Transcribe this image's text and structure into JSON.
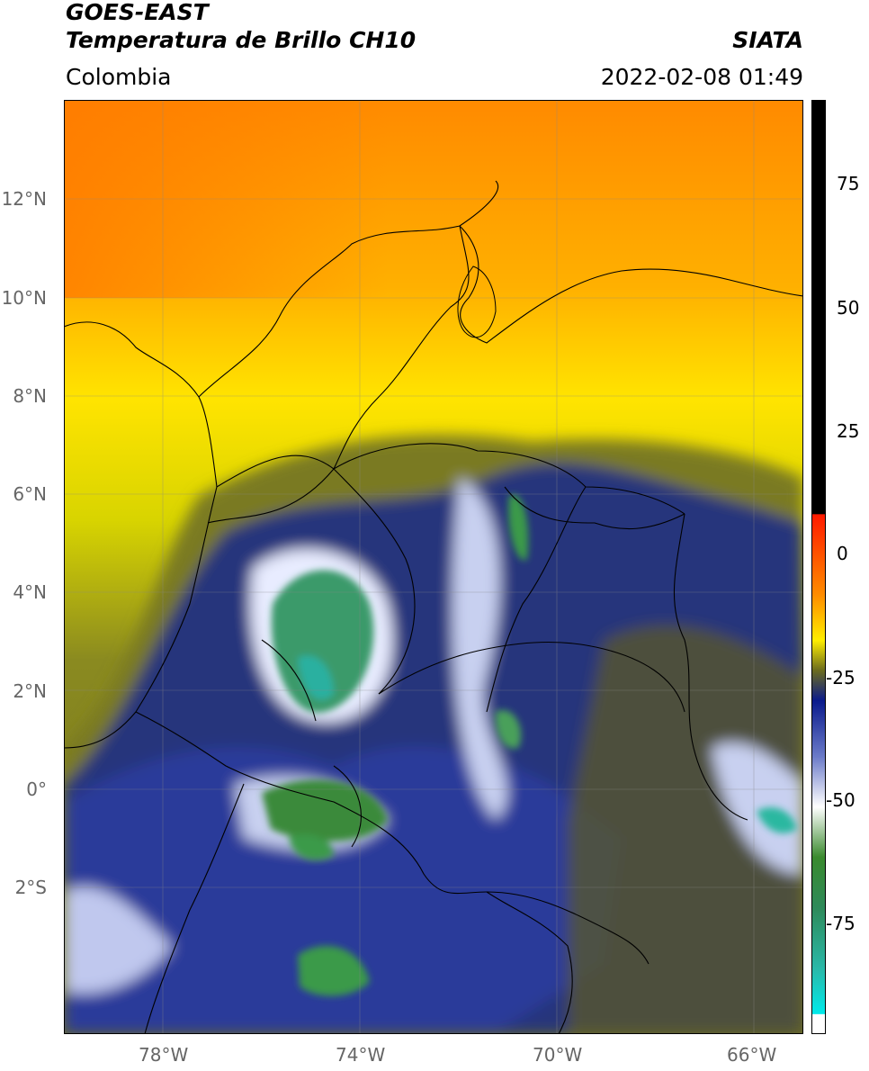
{
  "header": {
    "satellite": "GOES-EAST",
    "product": "Temperatura de Brillo CH10",
    "region": "Colombia",
    "agency": "SIATA",
    "datetime": "2022-02-08 01:49"
  },
  "map": {
    "latitude_ticks": [
      "12°N",
      "10°N",
      "8°N",
      "6°N",
      "4°N",
      "2°N",
      "0°",
      "2°S"
    ],
    "longitude_ticks": [
      "78°W",
      "74°W",
      "70°W",
      "66°W"
    ],
    "extent": {
      "lon_min": -80,
      "lon_max": -65,
      "lat_min": -5,
      "lat_max": 14
    }
  },
  "colorbar": {
    "ticks": [
      "75",
      "50",
      "25",
      "0",
      "-25",
      "-50",
      "-75"
    ],
    "range": [
      -95,
      90
    ],
    "stops": [
      {
        "value": 90,
        "color": "#000000"
      },
      {
        "value": 8,
        "color": "#000000"
      },
      {
        "value": 7.9,
        "color": "#ff1a00"
      },
      {
        "value": -8,
        "color": "#ff8c00"
      },
      {
        "value": -17,
        "color": "#ffee00"
      },
      {
        "value": -23,
        "color": "#6b6b1e"
      },
      {
        "value": -29,
        "color": "#0a1a8c"
      },
      {
        "value": -40,
        "color": "#6a7ac8"
      },
      {
        "value": -50,
        "color": "#ffffff"
      },
      {
        "value": -60,
        "color": "#3a8a2e"
      },
      {
        "value": -70,
        "color": "#2e8a5a"
      },
      {
        "value": -82,
        "color": "#2ab8a8"
      },
      {
        "value": -91,
        "color": "#00eaea"
      },
      {
        "value": -91.1,
        "color": "#ffffff"
      },
      {
        "value": -95,
        "color": "#ffffff"
      }
    ]
  }
}
